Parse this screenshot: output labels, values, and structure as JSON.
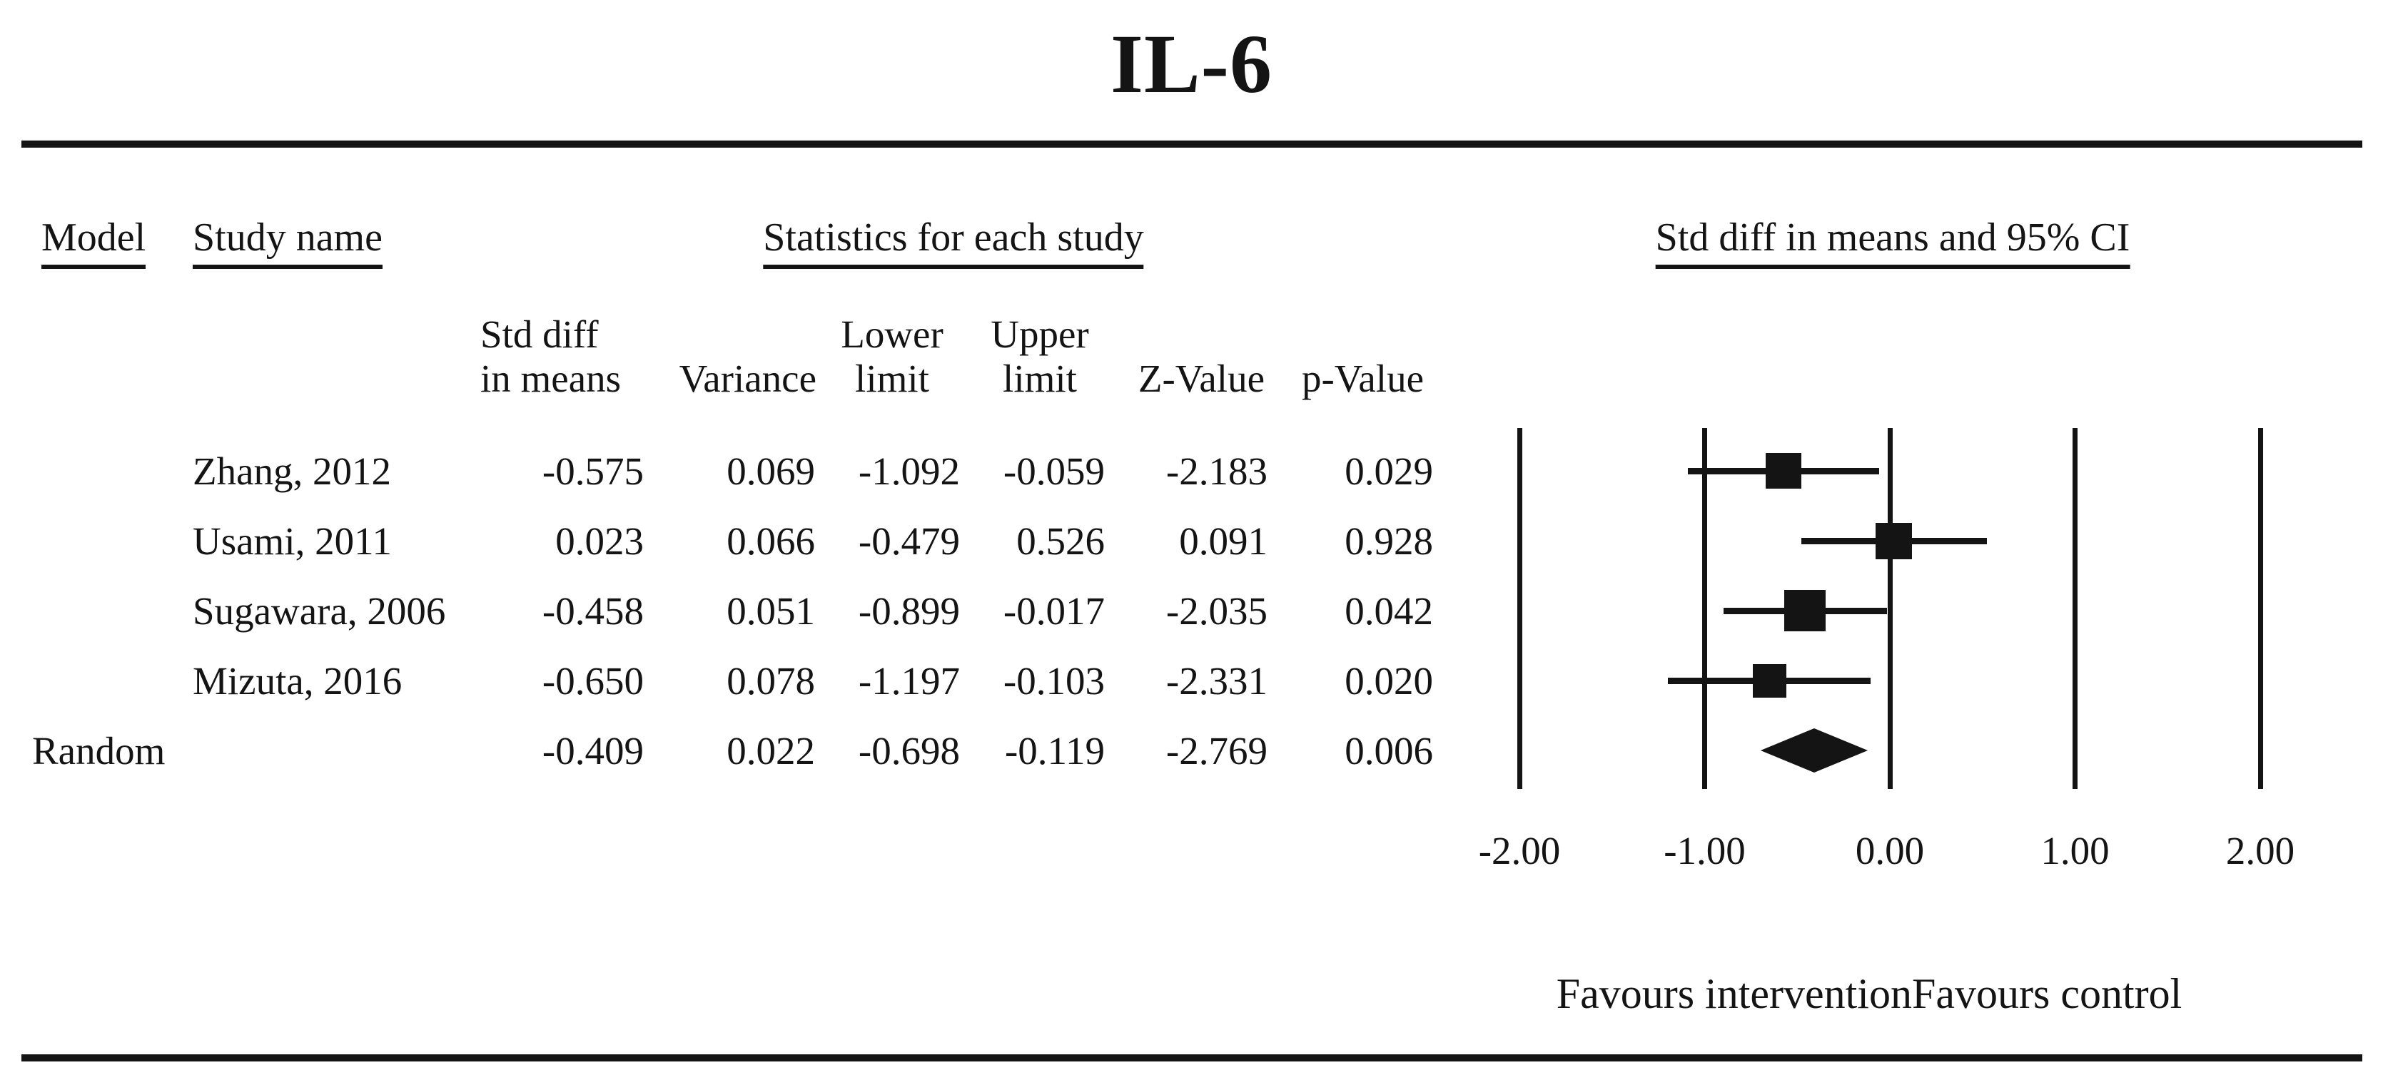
{
  "figure_title": "IL-6",
  "table": {
    "headers": {
      "model": "Model",
      "study_name": "Study name",
      "statistics_group": "Statistics for each study",
      "columns": {
        "std_diff_line1": "Std diff",
        "std_diff_line2": "in means",
        "variance": "Variance",
        "lower_line1": "Lower",
        "lower_line2": "limit",
        "upper_line1": "Upper",
        "upper_line2": "limit",
        "z_value": "Z-Value",
        "p_value": "p-Value"
      }
    },
    "rows": [
      {
        "study": "Zhang, 2012",
        "std_diff": "-0.575",
        "variance": "0.069",
        "lower": "-1.092",
        "upper": "-0.059",
        "z": "-2.183",
        "p": "0.029"
      },
      {
        "study": "Usami, 2011",
        "std_diff": "0.023",
        "variance": "0.066",
        "lower": "-0.479",
        "upper": "0.526",
        "z": "0.091",
        "p": "0.928"
      },
      {
        "study": "Sugawara, 2006",
        "std_diff": "-0.458",
        "variance": "0.051",
        "lower": "-0.899",
        "upper": "-0.017",
        "z": "-2.035",
        "p": "0.042"
      },
      {
        "study": "Mizuta, 2016",
        "std_diff": "-0.650",
        "variance": "0.078",
        "lower": "-1.197",
        "upper": "-0.103",
        "z": "-2.331",
        "p": "0.020"
      }
    ],
    "summary": {
      "model": "Random",
      "std_diff": "-0.409",
      "variance": "0.022",
      "lower": "-0.698",
      "upper": "-0.119",
      "z": "-2.769",
      "p": "0.006"
    }
  },
  "plot": {
    "header": "Std diff in means and 95% CI",
    "axis_ticks": [
      "-2.00",
      "-1.00",
      "0.00",
      "1.00",
      "2.00"
    ],
    "favours_left": "Favours intervention",
    "favours_right": "Favours control"
  },
  "colors": {
    "ink": "#141414",
    "background": "#ffffff"
  },
  "chart_data": {
    "type": "forest",
    "title": "IL-6",
    "effect_measure": "Std diff in means",
    "ci_level": "95% CI",
    "x_ticks": [
      -2.0,
      -1.0,
      0.0,
      1.0,
      2.0
    ],
    "xlim": [
      -2.0,
      2.0
    ],
    "grid": "vertical-lines-at-ticks",
    "studies": [
      {
        "name": "Zhang, 2012",
        "estimate": -0.575,
        "variance": 0.069,
        "lower": -1.092,
        "upper": -0.059,
        "z": -2.183,
        "p": 0.029
      },
      {
        "name": "Usami, 2011",
        "estimate": 0.023,
        "variance": 0.066,
        "lower": -0.479,
        "upper": 0.526,
        "z": 0.091,
        "p": 0.928
      },
      {
        "name": "Sugawara, 2006",
        "estimate": -0.458,
        "variance": 0.051,
        "lower": -0.899,
        "upper": -0.017,
        "z": -2.035,
        "p": 0.042
      },
      {
        "name": "Mizuta, 2016",
        "estimate": -0.65,
        "variance": 0.078,
        "lower": -1.197,
        "upper": -0.103,
        "z": -2.331,
        "p": 0.02
      }
    ],
    "summary": {
      "model": "Random",
      "estimate": -0.409,
      "variance": 0.022,
      "lower": -0.698,
      "upper": -0.119,
      "z": -2.769,
      "p": 0.006
    },
    "x_axis_direction_labels": {
      "negative": "Favours intervention",
      "positive": "Favours control"
    }
  }
}
